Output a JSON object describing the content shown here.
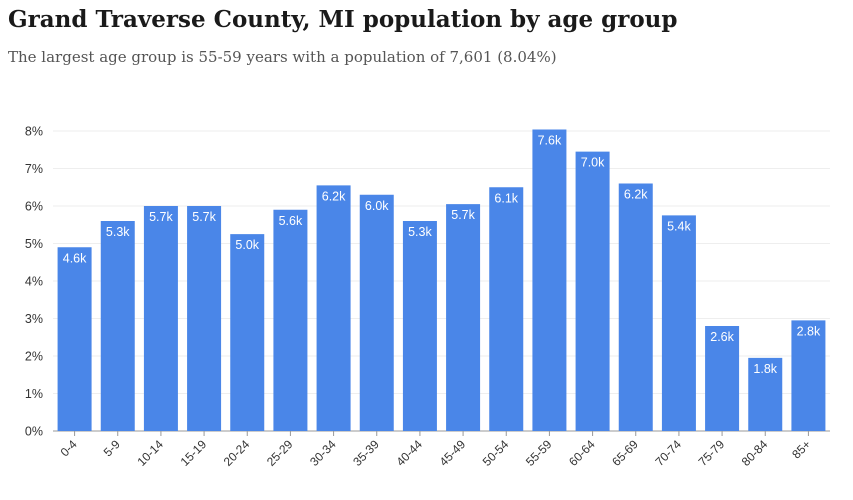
{
  "title": "Grand Traverse County, MI population by age group",
  "subtitle": "The largest age group is 55-59 years with a population of 7,601 (8.04%)",
  "chart_data": {
    "type": "bar",
    "categories": [
      "0-4",
      "5-9",
      "10-14",
      "15-19",
      "20-24",
      "25-29",
      "30-34",
      "35-39",
      "40-44",
      "45-49",
      "50-54",
      "55-59",
      "60-64",
      "65-69",
      "70-74",
      "75-79",
      "80-84",
      "85+"
    ],
    "values": [
      4.9,
      5.6,
      6.0,
      6.0,
      5.25,
      5.9,
      6.55,
      6.3,
      5.6,
      6.05,
      6.5,
      8.04,
      7.45,
      6.6,
      5.75,
      2.8,
      1.95,
      2.95
    ],
    "data_labels": [
      "4.6k",
      "5.3k",
      "5.7k",
      "5.7k",
      "5.0k",
      "5.6k",
      "6.2k",
      "6.0k",
      "5.3k",
      "5.7k",
      "6.1k",
      "7.6k",
      "7.0k",
      "6.2k",
      "5.4k",
      "2.6k",
      "1.8k",
      "2.8k"
    ],
    "yticks": [
      "0%",
      "1%",
      "2%",
      "3%",
      "4%",
      "5%",
      "6%",
      "7%",
      "8%"
    ],
    "ylim": [
      0,
      8
    ],
    "grid": true,
    "bar_color": "#4a86e8",
    "grid_color": "#eeeeee",
    "label_color": "#ffffff",
    "axis_text_color": "#333333"
  }
}
